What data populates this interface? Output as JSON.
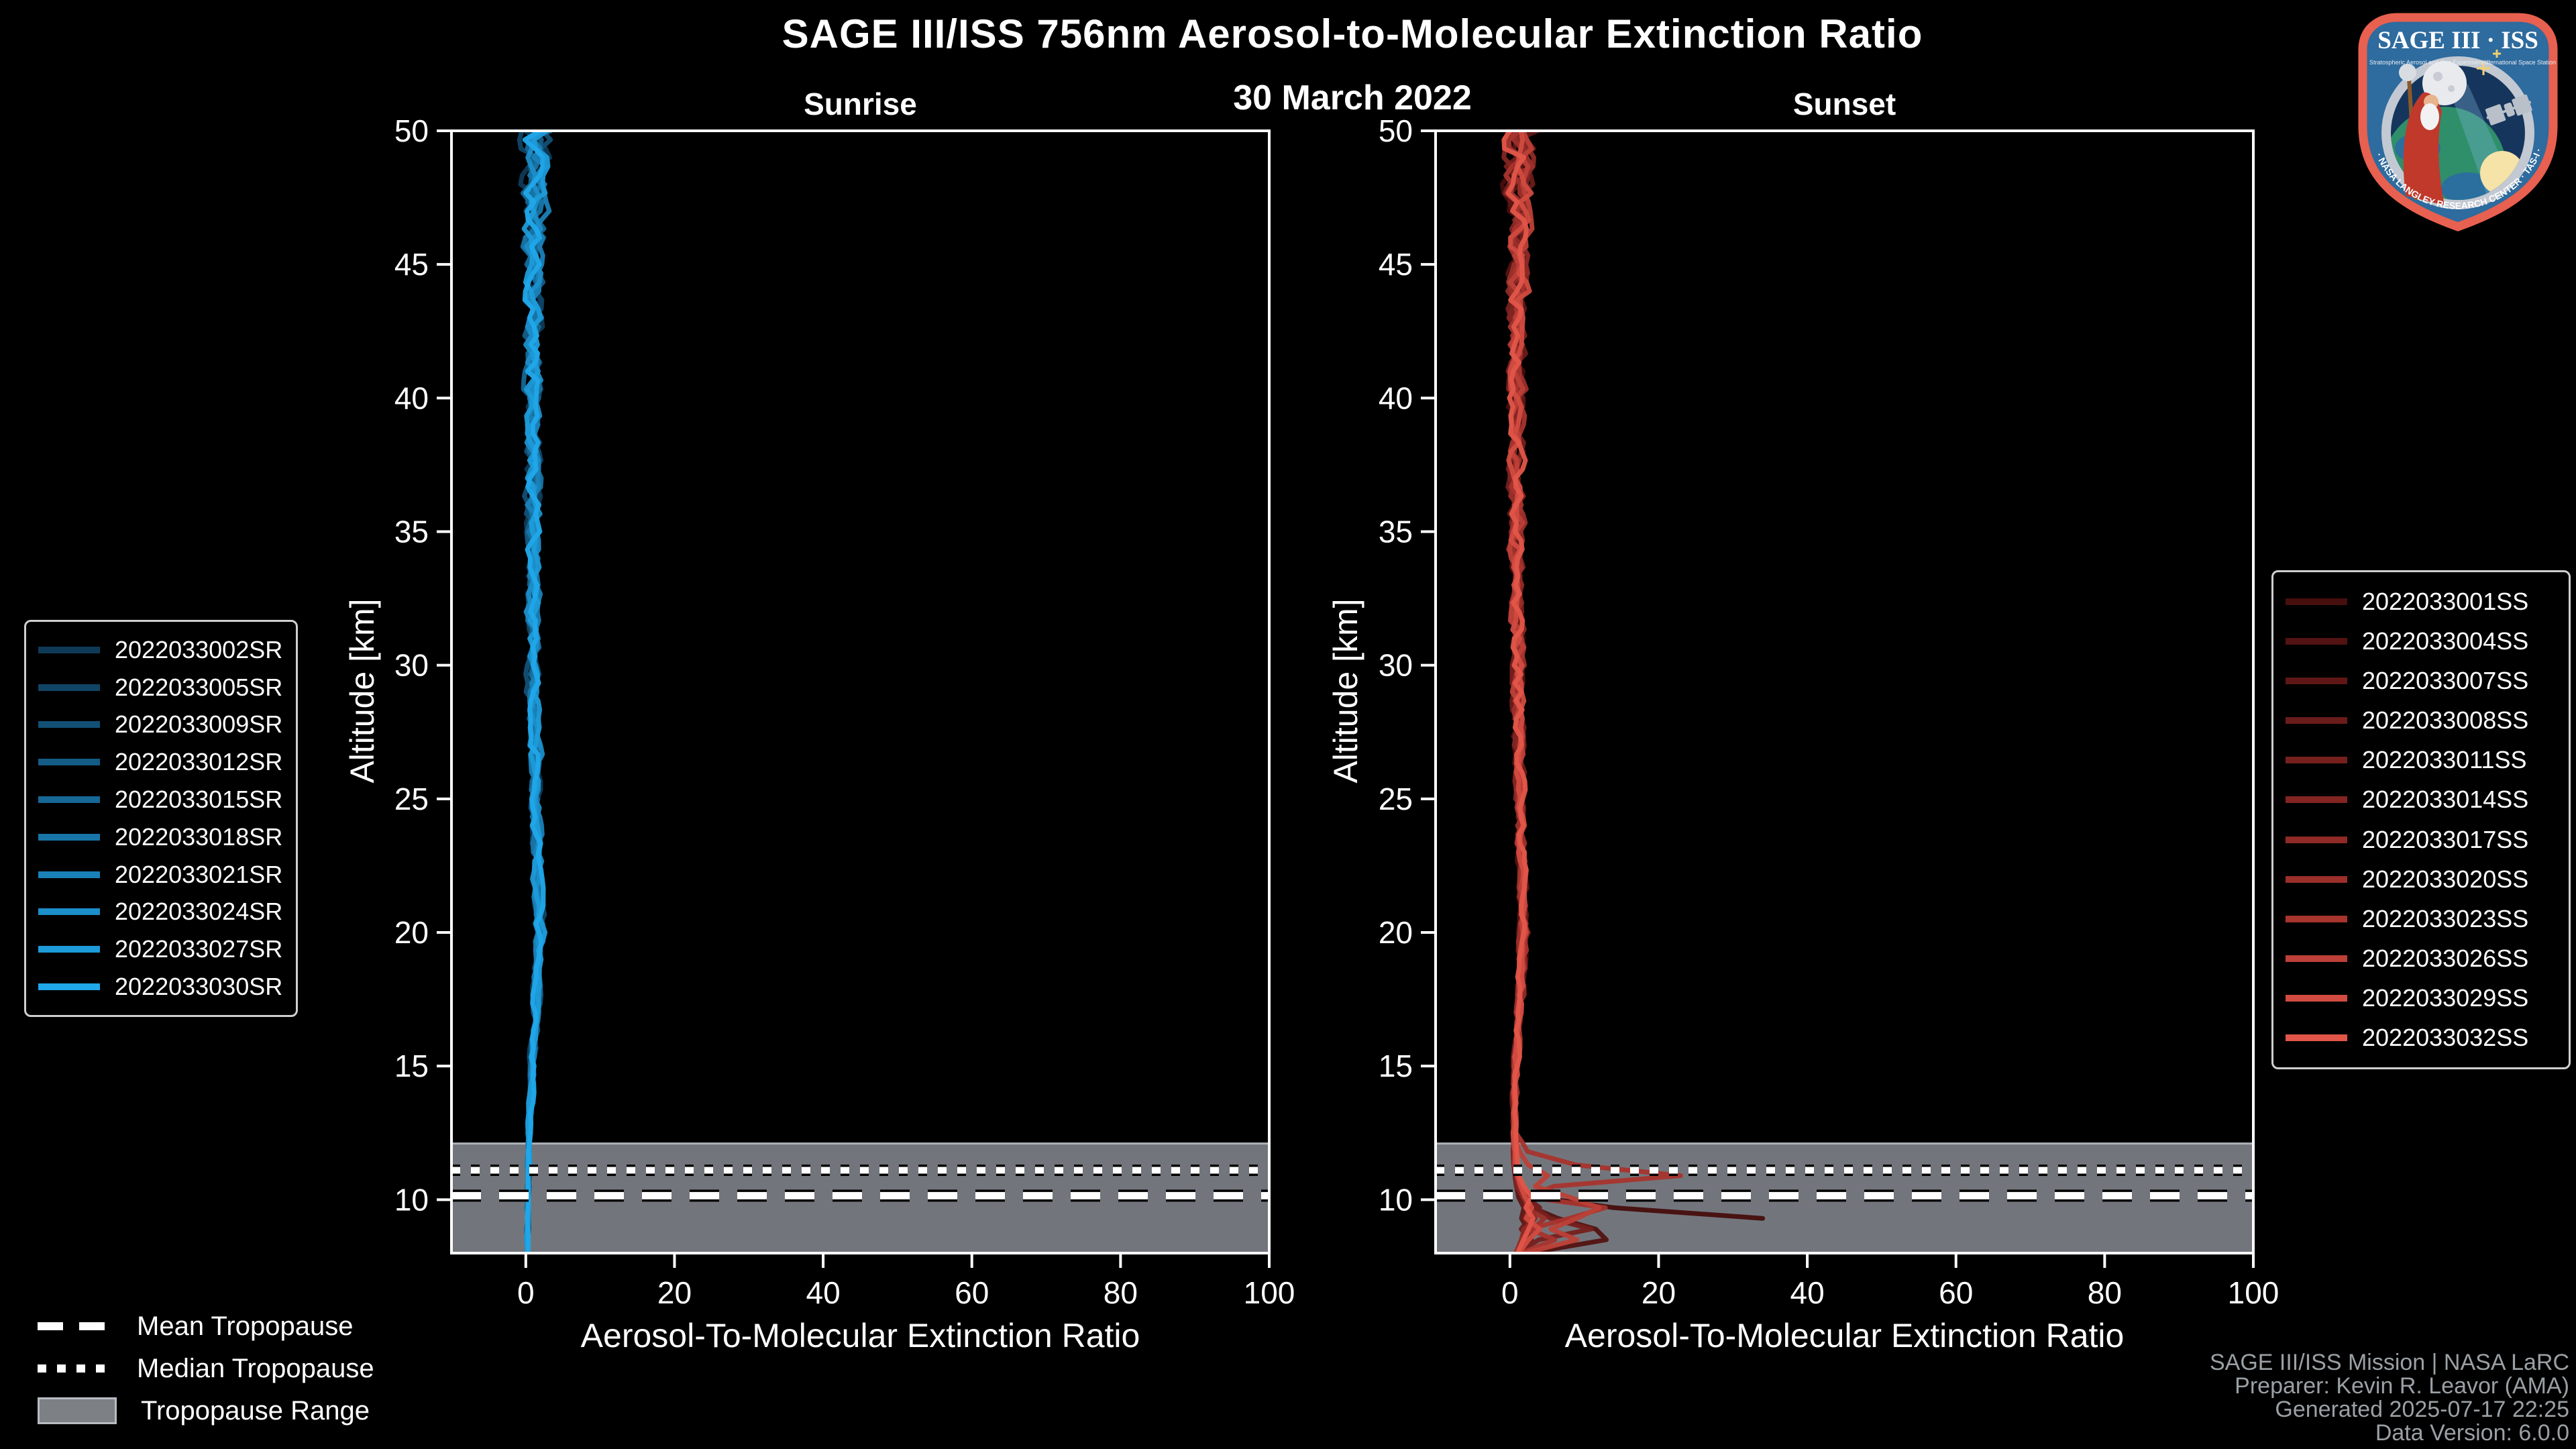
{
  "header": {
    "title": "SAGE III/ISS 756nm Aerosol-to-Molecular Extinction Ratio",
    "date": "30 March 2022"
  },
  "logo": {
    "name": "SAGE III · ISS",
    "subtitle_left": "Stratospheric Aerosol and Gas Experiment III",
    "subtitle_right": "International Space Station",
    "rim_text": "BALL · NASA LANGLEY RESEARCH CENTER · TAS-I · ESA"
  },
  "tropopause_legend": {
    "mean": "Mean Tropopause",
    "median": "Median Tropopause",
    "range": "Tropopause Range"
  },
  "footer": {
    "lines": [
      "SAGE III/ISS Mission | NASA LaRC",
      "Preparer: Kevin R. Leavor (AMA)",
      "Generated 2025-07-17 22:25",
      "Data Version: 6.0.0"
    ]
  },
  "colors": {
    "background": "#000000",
    "axis": "#ffffff",
    "tropopause_band": "#72767c",
    "tropopause_band_edge": "#aeb3b9",
    "tropopause_line": "#ffffff",
    "footer_text": "#9aa0a4",
    "sunrise_dark": "#0e3a57",
    "sunrise_bright": "#20a8ea",
    "sunset_dark": "#460e0d",
    "sunset_bright": "#e25649"
  },
  "chart_data": [
    {
      "type": "line",
      "title": "Sunrise",
      "xlabel": "Aerosol-To-Molecular Extinction Ratio",
      "ylabel": "Altitude [km]",
      "xlim": [
        -10,
        100
      ],
      "ylim": [
        8,
        50
      ],
      "xticks": [
        0,
        20,
        40,
        60,
        80,
        100
      ],
      "yticks": [
        10,
        15,
        20,
        25,
        30,
        35,
        40,
        45,
        50
      ],
      "grid": false,
      "legend_position": "left-outside",
      "tropopause": {
        "mean_km": 10.15,
        "median_km": 11.1,
        "range_km": [
          8,
          12.1
        ]
      },
      "alts_km": [
        50,
        48,
        46,
        44,
        42,
        40,
        38,
        36,
        34,
        32,
        30,
        28,
        26,
        24,
        22,
        20,
        18,
        16,
        14,
        12.5,
        11.8,
        11.3,
        10.9,
        10.5,
        10.1,
        9.7,
        9.3,
        8.9,
        8.5,
        8
      ],
      "series": [
        {
          "name": "2022033002SR",
          "color": "#0e3a57",
          "values": [
            1.5,
            0.8,
            1.2,
            0.9,
            1.0,
            0.8,
            1.0,
            0.9,
            0.8,
            1.0,
            0.9,
            1.1,
            1.4,
            1.1,
            1.8,
            2.0,
            1.5,
            1.0,
            0.6,
            0.4,
            0.4,
            0.3,
            0.3,
            0.3,
            0.3,
            0.3,
            0.3,
            0.3,
            0.3,
            0.2
          ]
        },
        {
          "name": "2022033005SR",
          "color": "#104566",
          "values": [
            0.6,
            1.7,
            0.9,
            1.3,
            0.8,
            1.1,
            0.8,
            1.0,
            1.0,
            0.8,
            1.0,
            1.2,
            1.2,
            1.5,
            1.6,
            2.3,
            1.3,
            0.8,
            0.7,
            0.5,
            0.4,
            0.4,
            0.3,
            0.3,
            0.3,
            0.3,
            0.3,
            0.3,
            0.2,
            0.3
          ]
        },
        {
          "name": "2022033009SR",
          "color": "#125076",
          "values": [
            2.2,
            1.2,
            1.5,
            0.7,
            1.2,
            0.9,
            1.1,
            0.8,
            0.9,
            1.1,
            0.8,
            1.0,
            1.3,
            1.6,
            1.3,
            1.7,
            1.8,
            1.1,
            0.8,
            0.5,
            0.4,
            0.3,
            0.4,
            0.3,
            0.3,
            0.2,
            0.3,
            0.3,
            0.3,
            0.3
          ]
        },
        {
          "name": "2022033012SR",
          "color": "#145c86",
          "values": [
            0.9,
            1.4,
            0.6,
            1.1,
            0.9,
            1.2,
            0.9,
            1.1,
            0.8,
            0.9,
            1.1,
            0.9,
            1.5,
            1.2,
            2.0,
            1.6,
            1.4,
            1.2,
            0.7,
            0.4,
            0.3,
            0.4,
            0.3,
            0.3,
            0.2,
            0.3,
            0.3,
            0.2,
            0.3,
            0.3
          ]
        },
        {
          "name": "2022033015SR",
          "color": "#166896",
          "values": [
            1.8,
            0.5,
            1.4,
            1.0,
            1.1,
            0.7,
            1.2,
            0.8,
            1.1,
            0.9,
            1.0,
            1.3,
            1.1,
            1.7,
            1.5,
            2.1,
            1.6,
            0.9,
            0.5,
            0.5,
            0.4,
            0.3,
            0.3,
            0.4,
            0.3,
            0.3,
            0.2,
            0.3,
            0.3,
            0.2
          ]
        },
        {
          "name": "2022033018SR",
          "color": "#1875a7",
          "values": [
            1.1,
            1.9,
            0.7,
            1.2,
            0.8,
            1.0,
            0.9,
            1.2,
            0.9,
            1.0,
            1.2,
            1.0,
            1.4,
            1.3,
            1.7,
            1.9,
            1.2,
            1.1,
            0.8,
            0.4,
            0.4,
            0.3,
            0.3,
            0.3,
            0.4,
            0.2,
            0.3,
            0.3,
            0.2,
            0.3
          ]
        },
        {
          "name": "2022033021SR",
          "color": "#1a81b8",
          "values": [
            0.7,
            1.3,
            1.6,
            0.8,
            1.3,
            0.9,
            1.0,
            0.9,
            1.0,
            1.2,
            0.9,
            1.1,
            1.2,
            1.6,
            1.4,
            1.8,
            1.7,
            1.0,
            0.6,
            0.5,
            0.3,
            0.4,
            0.3,
            0.3,
            0.3,
            0.3,
            0.4,
            0.2,
            0.3,
            0.3
          ]
        },
        {
          "name": "2022033024SR",
          "color": "#1c8ec9",
          "values": [
            1.4,
            0.9,
            1.1,
            1.2,
            0.7,
            1.1,
            0.8,
            1.0,
            1.2,
            0.8,
            1.1,
            1.2,
            1.6,
            1.3,
            1.9,
            1.5,
            1.3,
            0.9,
            0.7,
            0.4,
            0.5,
            0.3,
            0.4,
            0.3,
            0.3,
            0.3,
            0.3,
            0.3,
            0.3,
            0.2
          ]
        },
        {
          "name": "2022033027SR",
          "color": "#1e9bd9",
          "values": [
            2.0,
            1.1,
            0.8,
            1.4,
            1.0,
            0.8,
            1.1,
            0.9,
            0.9,
            1.1,
            1.0,
            1.4,
            1.1,
            1.8,
            1.4,
            2.2,
            1.5,
            1.2,
            0.6,
            0.5,
            0.4,
            0.4,
            0.3,
            0.2,
            0.3,
            0.3,
            0.3,
            0.3,
            0.2,
            0.3
          ]
        },
        {
          "name": "2022033030SR",
          "color": "#20a8ea",
          "values": [
            1.0,
            1.6,
            1.3,
            0.9,
            1.2,
            1.0,
            0.9,
            1.1,
            1.0,
            0.9,
            1.3,
            1.1,
            1.5,
            1.4,
            2.1,
            1.7,
            1.4,
            1.0,
            0.8,
            0.5,
            0.4,
            0.3,
            0.3,
            0.3,
            0.4,
            0.3,
            0.2,
            0.3,
            0.3,
            0.3
          ]
        }
      ]
    },
    {
      "type": "line",
      "title": "Sunset",
      "xlabel": "Aerosol-To-Molecular Extinction Ratio",
      "ylabel": "Altitude [km]",
      "xlim": [
        -10,
        100
      ],
      "ylim": [
        8,
        50
      ],
      "xticks": [
        0,
        20,
        40,
        60,
        80,
        100
      ],
      "yticks": [
        10,
        15,
        20,
        25,
        30,
        35,
        40,
        45,
        50
      ],
      "grid": false,
      "legend_position": "right-outside",
      "tropopause": {
        "mean_km": 10.15,
        "median_km": 11.1,
        "range_km": [
          8,
          12.1
        ]
      },
      "alts_km": [
        50,
        48,
        46,
        44,
        42,
        40,
        38,
        36,
        34,
        32,
        30,
        28,
        26,
        24,
        22,
        20,
        18,
        16,
        14,
        12.5,
        11.8,
        11.3,
        10.9,
        10.5,
        10.1,
        9.7,
        9.3,
        8.9,
        8.5,
        8
      ],
      "series": [
        {
          "name": "2022033001SS",
          "color": "#460e0d",
          "values": [
            1.3,
            0.7,
            1.1,
            0.9,
            1.0,
            0.8,
            0.9,
            1.0,
            0.8,
            0.9,
            1.0,
            1.1,
            1.3,
            1.2,
            1.7,
            1.9,
            1.4,
            0.9,
            0.7,
            0.6,
            0.7,
            0.8,
            0.9,
            1.2,
            3.5,
            14,
            34,
            null,
            null,
            null
          ]
        },
        {
          "name": "2022033004SS",
          "color": "#521312",
          "values": [
            0.8,
            1.6,
            0.9,
            1.2,
            0.8,
            1.0,
            0.9,
            1.1,
            0.9,
            0.8,
            1.1,
            1.0,
            1.4,
            1.3,
            1.8,
            1.6,
            1.2,
            1.0,
            0.6,
            0.5,
            0.5,
            0.6,
            0.7,
            0.9,
            1.5,
            3.0,
            6.5,
            11.5,
            13,
            2.5
          ]
        },
        {
          "name": "2022033007SS",
          "color": "#5e1716",
          "values": [
            1.9,
            1.0,
            1.4,
            0.8,
            1.1,
            0.9,
            1.0,
            0.8,
            1.0,
            1.1,
            0.9,
            1.2,
            1.1,
            1.5,
            1.4,
            2.0,
            1.3,
            1.1,
            0.8,
            0.5,
            0.6,
            0.5,
            0.7,
            0.8,
            1.2,
            2.0,
            1.5,
            2.5,
            1.8,
            1.0
          ]
        },
        {
          "name": "2022033008SS",
          "color": "#6a1c1a",
          "values": [
            1.0,
            1.3,
            0.7,
            1.1,
            0.9,
            1.1,
            0.8,
            1.0,
            0.9,
            1.0,
            1.2,
            0.9,
            1.5,
            1.2,
            1.9,
            1.7,
            1.5,
            0.9,
            0.7,
            0.6,
            0.5,
            0.7,
            0.9,
            1.3,
            2.2,
            4.0,
            2.5,
            1.5,
            3.0,
            1.2
          ]
        },
        {
          "name": "2022033011SS",
          "color": "#76201e",
          "values": [
            1.6,
            0.6,
            1.2,
            1.0,
            1.0,
            0.8,
            1.1,
            0.9,
            1.0,
            0.9,
            1.1,
            1.2,
            1.2,
            1.6,
            1.5,
            2.2,
            1.4,
            1.0,
            0.5,
            0.5,
            0.6,
            0.8,
            1.0,
            1.5,
            2.0,
            3.5,
            5.5,
            11,
            4,
            1.0
          ]
        },
        {
          "name": "2022033014SS",
          "color": "#832522",
          "values": [
            1.2,
            1.8,
            0.8,
            1.1,
            0.9,
            1.0,
            0.9,
            1.1,
            0.8,
            1.0,
            1.1,
            1.0,
            1.3,
            1.4,
            1.6,
            1.8,
            1.3,
            1.2,
            0.8,
            0.4,
            0.5,
            0.6,
            0.8,
            1.0,
            1.6,
            2.8,
            2.0,
            3.5,
            2.2,
            1.5
          ]
        },
        {
          "name": "2022033017SS",
          "color": "#8f2a26",
          "values": [
            0.8,
            1.2,
            1.5,
            0.9,
            1.2,
            0.8,
            1.0,
            0.9,
            1.1,
            1.1,
            0.9,
            1.2,
            1.1,
            1.7,
            1.3,
            1.9,
            1.6,
            1.0,
            0.7,
            0.5,
            0.5,
            0.7,
            0.9,
            1.2,
            1.8,
            2.5,
            3.5,
            2.0,
            1.5,
            0.8
          ]
        },
        {
          "name": "2022033020SS",
          "color": "#9b2f2a",
          "values": [
            1.5,
            0.9,
            1.0,
            1.1,
            0.8,
            1.0,
            0.9,
            1.0,
            1.1,
            0.9,
            1.2,
            1.1,
            1.5,
            1.3,
            1.8,
            1.5,
            1.2,
            1.0,
            0.8,
            0.6,
            0.7,
            0.8,
            1.1,
            1.6,
            2.5,
            2.0,
            4.5,
            3.0,
            2.0,
            1.0
          ]
        },
        {
          "name": "2022033023SS",
          "color": "#a8342e",
          "values": [
            1.8,
            1.0,
            0.9,
            1.3,
            1.0,
            0.9,
            1.0,
            0.9,
            0.9,
            1.0,
            1.0,
            1.3,
            1.2,
            1.7,
            1.5,
            2.1,
            1.4,
            1.1,
            0.7,
            0.8,
            2.5,
            9,
            23,
            6,
            2.5,
            13,
            8,
            2.5,
            6,
            1.5
          ]
        },
        {
          "name": "2022033026SS",
          "color": "#bc4038",
          "values": [
            1.1,
            1.5,
            1.2,
            0.9,
            1.1,
            1.0,
            0.9,
            1.0,
            1.0,
            0.9,
            1.2,
            1.0,
            1.4,
            1.3,
            2.0,
            1.6,
            1.3,
            0.9,
            0.8,
            0.7,
            1.2,
            2.5,
            5,
            3.5,
            8,
            12,
            9,
            5.5,
            9,
            2
          ]
        },
        {
          "name": "2022033029SS",
          "color": "#d14b40",
          "values": [
            0.9,
            1.4,
            0.8,
            1.2,
            0.9,
            1.1,
            0.9,
            1.2,
            0.9,
            1.0,
            1.1,
            1.1,
            1.3,
            1.5,
            1.7,
            1.8,
            1.5,
            1.1,
            0.6,
            0.5,
            0.6,
            0.7,
            0.9,
            1.3,
            2.0,
            3.0,
            2.2,
            4.0,
            2.5,
            1.2
          ]
        },
        {
          "name": "2022033032SS",
          "color": "#e25649",
          "values": [
            1.3,
            0.8,
            1.1,
            1.0,
            1.2,
            0.9,
            1.0,
            1.0,
            0.9,
            1.1,
            1.0,
            1.2,
            1.4,
            1.3,
            1.9,
            1.7,
            1.3,
            1.0,
            0.7,
            0.6,
            0.8,
            1.0,
            1.2,
            1.8,
            2.8,
            2.2,
            3.2,
            2.6,
            1.8,
            1.0
          ]
        }
      ]
    }
  ]
}
